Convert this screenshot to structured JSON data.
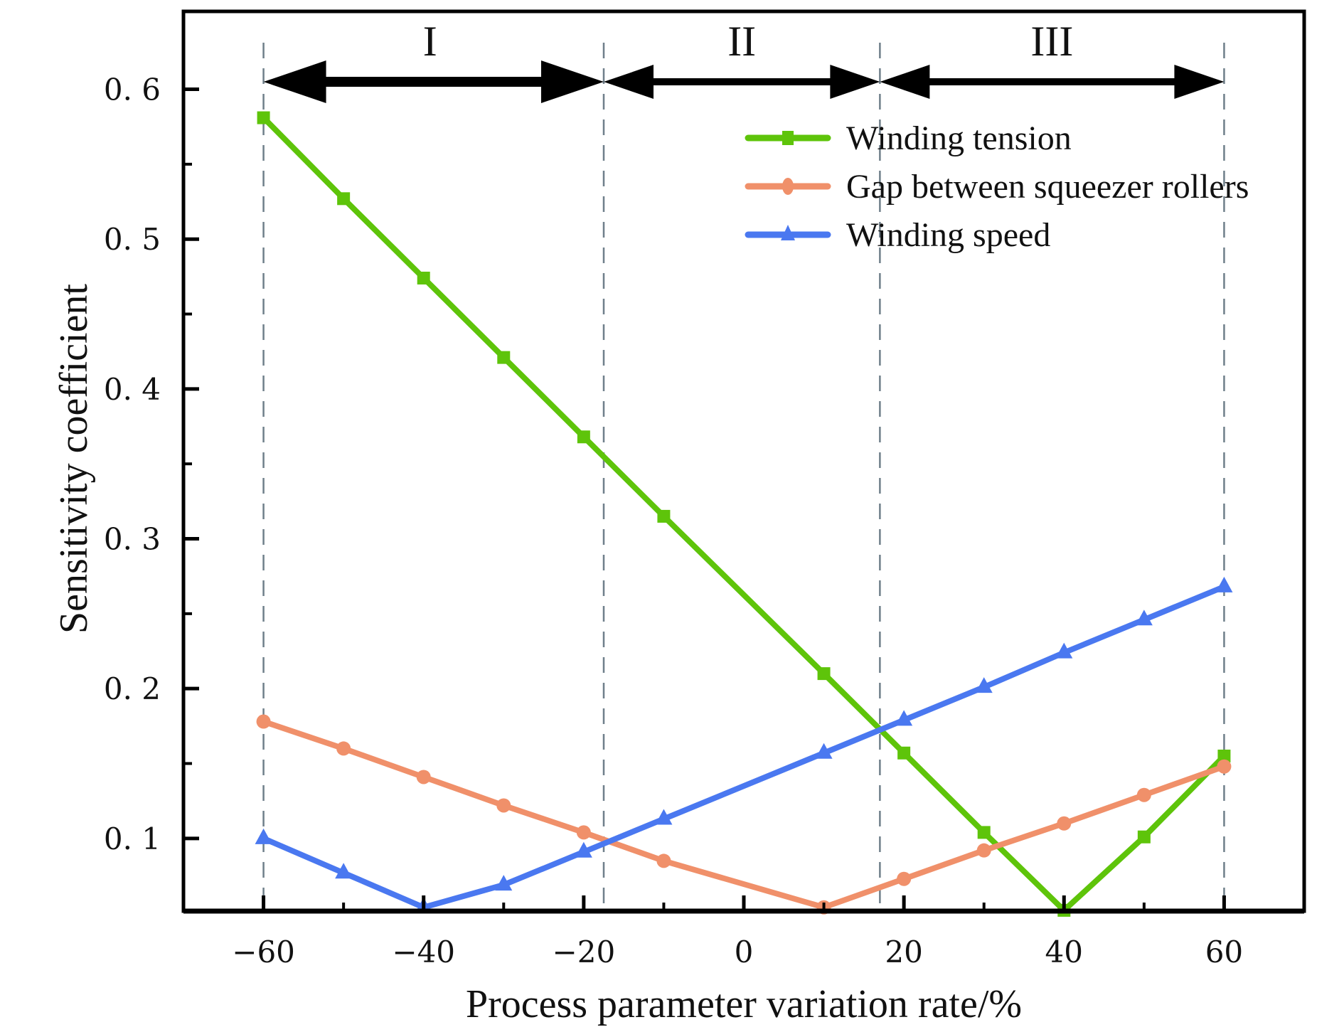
{
  "chart_data": {
    "type": "line",
    "title": "",
    "xlabel": "Process parameter variation rate/%",
    "ylabel": "Sensitivity coefficient",
    "xlim": [
      -70,
      70
    ],
    "ylim": [
      0.0515,
      0.652
    ],
    "grid": false,
    "legend_position": "top-right",
    "x_ticks": [
      -60,
      -40,
      -20,
      0,
      20,
      40,
      60
    ],
    "x_tick_labels": [
      "−60",
      "−40",
      "−20",
      "0",
      "20",
      "40",
      "60"
    ],
    "x_minor_ticks": [
      -50,
      -30,
      -10,
      10,
      30,
      50
    ],
    "y_ticks": [
      0.1,
      0.2,
      0.3,
      0.4,
      0.5,
      0.6
    ],
    "y_tick_labels": [
      "0. 1",
      "0. 2",
      "0. 3",
      "0. 4",
      "0. 5",
      "0. 6"
    ],
    "y_minor_ticks": [
      0.15,
      0.25,
      0.35,
      0.45,
      0.55
    ],
    "x": [
      -60,
      -50,
      -40,
      -30,
      -20,
      -10,
      10,
      20,
      30,
      40,
      50,
      60
    ],
    "series": [
      {
        "name": "Winding tension",
        "color": "#5ec40a",
        "marker": "square",
        "values": [
          0.581,
          0.527,
          0.474,
          0.421,
          0.368,
          0.315,
          0.21,
          0.157,
          0.104,
          0.052,
          0.101,
          0.155
        ]
      },
      {
        "name": "Gap between squeezer rollers",
        "color": "#f0906a",
        "marker": "circle",
        "values": [
          0.178,
          0.16,
          0.141,
          0.122,
          0.104,
          0.085,
          0.054,
          0.073,
          0.092,
          0.11,
          0.129,
          0.148
        ]
      },
      {
        "name": "Winding speed",
        "color": "#4a78f0",
        "marker": "triangle",
        "values": [
          0.1,
          0.077,
          0.054,
          0.069,
          0.091,
          0.113,
          0.157,
          0.179,
          0.201,
          0.224,
          0.246,
          0.268
        ]
      }
    ],
    "region_boundaries": [
      -60,
      -17.5,
      17,
      60
    ],
    "regions": [
      {
        "label": "I",
        "from": -60,
        "to": -17.5
      },
      {
        "label": "II",
        "from": -17.5,
        "to": 17
      },
      {
        "label": "III",
        "from": 17,
        "to": 60
      }
    ],
    "annotation_arrow_y": 0.605
  }
}
